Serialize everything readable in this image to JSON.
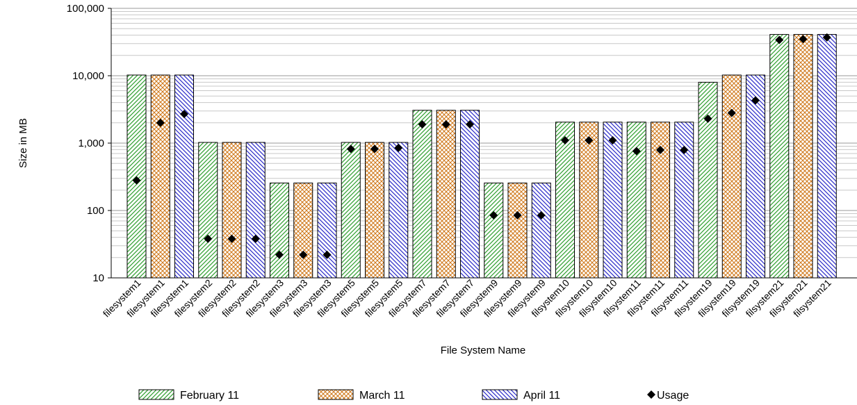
{
  "chart_data": {
    "type": "bar",
    "title": "",
    "xlabel": "File System Name",
    "ylabel": "Size in MB",
    "yscale": "log",
    "ylim": [
      10,
      100000
    ],
    "ytick_values": [
      10,
      100,
      1000,
      10000,
      100000
    ],
    "ytick_labels": [
      "10",
      "100",
      "1,000",
      "10,000",
      "100,000"
    ],
    "grid": "horizontal minor and major gridlines",
    "legend_position": "bottom",
    "categories": [
      "filesystem1",
      "filesystem1",
      "filesystem1",
      "filesystem2",
      "filesystem2",
      "filesystem2",
      "filesystem3",
      "filesystem3",
      "filesystem3",
      "filesystem5",
      "filesystem5",
      "filesystem5",
      "filesystem7",
      "filesystem7",
      "filesystem7",
      "filesystem9",
      "filesystem9",
      "filesystem9",
      "filsystem10",
      "filsystem10",
      "filsystem10",
      "filsystem11",
      "filsystem11",
      "filsystem11",
      "filsystem19",
      "filsystem19",
      "filsystem19",
      "filsystem21",
      "filsystem21",
      "filsystem21"
    ],
    "bar_series": [
      "February 11",
      "March 11",
      "April 11",
      "February 11",
      "March 11",
      "April 11",
      "February 11",
      "March 11",
      "April 11",
      "February 11",
      "March 11",
      "April 11",
      "February 11",
      "March 11",
      "April 11",
      "February 11",
      "March 11",
      "April 11",
      "February 11",
      "March 11",
      "April 11",
      "February 11",
      "March 11",
      "April 11",
      "February 11",
      "March 11",
      "April 11",
      "February 11",
      "March 11",
      "April 11"
    ],
    "values": [
      10240,
      10240,
      10240,
      1024,
      1024,
      1024,
      256,
      256,
      256,
      1024,
      1024,
      1024,
      3072,
      3072,
      3072,
      256,
      256,
      256,
      2048,
      2048,
      2048,
      2048,
      2048,
      2048,
      8000,
      10240,
      10240,
      40960,
      40960,
      40960
    ],
    "usage": [
      280,
      2000,
      2700,
      38,
      38,
      38,
      22,
      22,
      22,
      820,
      820,
      850,
      1900,
      1900,
      1900,
      85,
      85,
      85,
      1100,
      1100,
      1100,
      760,
      790,
      790,
      2300,
      2800,
      4300,
      34000,
      35000,
      37000
    ],
    "series": [
      {
        "name": "February 11",
        "pattern": "diagonal-forward",
        "color": "#2e9e2e"
      },
      {
        "name": "March 11",
        "pattern": "cross-hatch",
        "color": "#d07a1e"
      },
      {
        "name": "April 11",
        "pattern": "diagonal-back",
        "color": "#2a2ac8"
      },
      {
        "name": "Usage",
        "marker": "diamond",
        "color": "#000000"
      }
    ]
  }
}
